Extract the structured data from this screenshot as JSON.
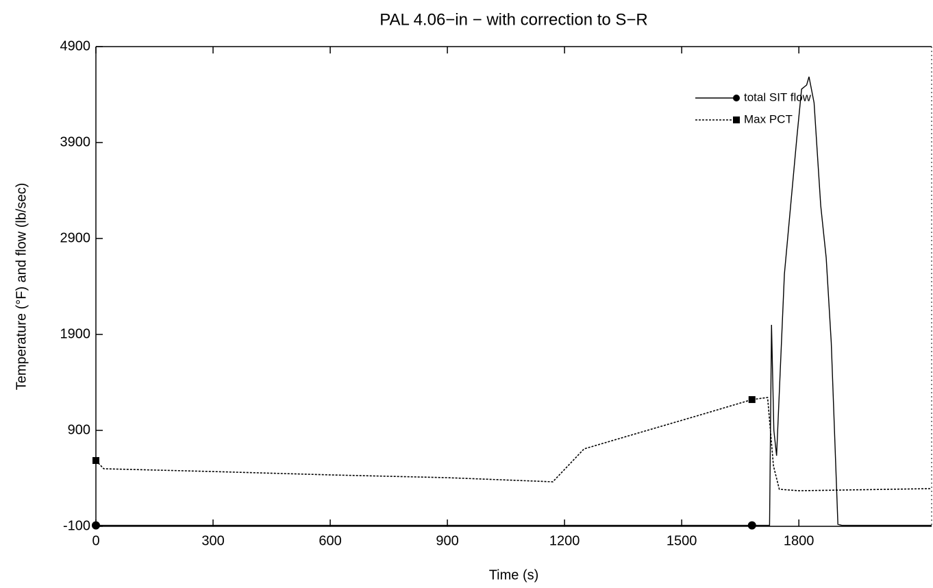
{
  "chart_data": {
    "type": "line",
    "title": "PAL 4.06−in − with correction to S−R",
    "x_label": "Time (s)",
    "y_label": "Temperature (°F) and flow (lb/sec)",
    "xlim": [
      0,
      2140
    ],
    "ylim": [
      -100,
      4900
    ],
    "xticks": [
      0,
      300,
      600,
      900,
      1200,
      1500,
      1800
    ],
    "yticks": [
      -100,
      900,
      1900,
      2900,
      3900,
      4900
    ],
    "legend": "upper right",
    "series": [
      {
        "name": "total SIT flow",
        "color": "#000000",
        "dash": "solid",
        "marker": "circle",
        "x": [
          0,
          1680,
          1725,
          1730,
          1736,
          1743,
          1763,
          1795,
          1807,
          1820,
          1826,
          1839,
          1856,
          1870,
          1883,
          1900,
          1910,
          2140
        ],
        "values": [
          -90,
          -90,
          -90,
          2000,
          900,
          636,
          2529,
          3957,
          4457,
          4500,
          4586,
          4314,
          3243,
          2700,
          1814,
          -79,
          -90,
          -90
        ]
      },
      {
        "name": "Max PCT",
        "color": "#000000",
        "dash": "dotted",
        "marker": "square",
        "x": [
          0,
          20,
          300,
          600,
          900,
          1170,
          1250,
          1400,
          1550,
          1680,
          1720,
          1735,
          1750,
          1800,
          2140
        ],
        "values": [
          586,
          500,
          471,
          436,
          407,
          364,
          707,
          886,
          1064,
          1221,
          1243,
          529,
          286,
          271,
          293
        ]
      }
    ]
  }
}
